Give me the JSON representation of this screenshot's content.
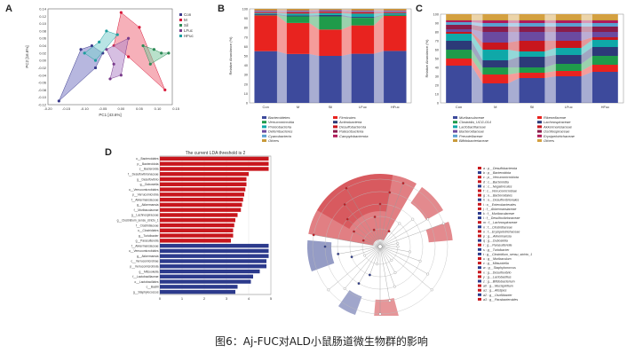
{
  "figure": {
    "caption": "图6：Aj-FUC对ALD小鼠肠道微生物群的影响",
    "panel_letters": [
      "A",
      "B",
      "C",
      "D"
    ]
  },
  "chart_data": [
    {
      "id": "A",
      "type": "scatter",
      "xlabel": "PC1 [43.6%]",
      "ylabel": "PC2 [16.6%]",
      "xlim": [
        -0.2,
        0.14
      ],
      "ylim": [
        -0.12,
        0.14
      ],
      "xticks": [
        "-0.20",
        "-0.15",
        "-0.10",
        "-0.05",
        "0.00",
        "0.05",
        "0.10",
        "0.15"
      ],
      "yticks": [
        "0.14",
        "0.12",
        "0.10",
        "0.08",
        "0.06",
        "0.04",
        "0.02",
        "0.00",
        "-0.02",
        "-0.04",
        "-0.06",
        "-0.08",
        "-0.10",
        "-0.12"
      ],
      "series": [
        {
          "name": "Con",
          "color": "#3a3a8c",
          "fill": "#7b7bc4",
          "points": [
            [
              -0.17,
              -0.11
            ],
            [
              -0.11,
              0.03
            ],
            [
              -0.08,
              0.04
            ],
            [
              -0.05,
              0.02
            ],
            [
              -0.07,
              -0.02
            ]
          ]
        },
        {
          "name": "M",
          "color": "#d81b3c",
          "fill": "#ef6f7f",
          "points": [
            [
              0.0,
              0.13
            ],
            [
              0.05,
              0.09
            ],
            [
              0.12,
              -0.08
            ],
            [
              0.02,
              0.01
            ],
            [
              -0.02,
              0.04
            ]
          ]
        },
        {
          "name": "Sil",
          "color": "#2e8b57",
          "fill": "#7fc9a0",
          "points": [
            [
              0.06,
              0.04
            ],
            [
              0.09,
              0.03
            ],
            [
              0.11,
              0.02
            ],
            [
              0.13,
              0.02
            ],
            [
              0.08,
              -0.01
            ]
          ]
        },
        {
          "name": "LFuc",
          "color": "#7a3d8c",
          "fill": "#b48acb",
          "points": [
            [
              -0.04,
              0.03
            ],
            [
              -0.02,
              -0.01
            ],
            [
              -0.03,
              -0.05
            ],
            [
              0.0,
              -0.04
            ],
            [
              0.02,
              0.06
            ]
          ]
        },
        {
          "name": "HFuc",
          "color": "#1e9e9e",
          "fill": "#7fd0d0",
          "points": [
            [
              -0.1,
              0.02
            ],
            [
              -0.06,
              0.05
            ],
            [
              -0.04,
              0.08
            ],
            [
              -0.01,
              0.07
            ],
            [
              -0.07,
              0.0
            ]
          ]
        }
      ]
    },
    {
      "id": "B",
      "type": "bar",
      "stacked": true,
      "ylabel": "Relative Abundance (%)",
      "yticks": [
        "100",
        "90",
        "80",
        "70",
        "60",
        "50",
        "40",
        "30",
        "20",
        "10",
        "0"
      ],
      "categories": [
        "Con",
        "M",
        "Sil",
        "LFuc",
        "HFuc"
      ],
      "series": [
        {
          "name": "Bacteroidetes",
          "color": "#3d4a9c",
          "values": [
            55,
            52,
            50,
            52,
            55
          ]
        },
        {
          "name": "Firmicutes",
          "color": "#e8231f",
          "values": [
            38,
            33,
            28,
            30,
            37
          ]
        },
        {
          "name": "Verrucomicrobia",
          "color": "#1f9b4a",
          "values": [
            0.5,
            7,
            14,
            8,
            1
          ]
        },
        {
          "name": "Actinobacteria",
          "color": "#2c3a78",
          "values": [
            1,
            1,
            1.5,
            1,
            0.5
          ]
        },
        {
          "name": "Proteobacteria",
          "color": "#0fa8a8",
          "values": [
            1,
            2,
            2,
            3.5,
            1.5
          ]
        },
        {
          "name": "Desulfobacterota",
          "color": "#c8161d",
          "values": [
            1,
            1.5,
            1.5,
            1.5,
            1
          ]
        },
        {
          "name": "Deferribacteres",
          "color": "#6b4aa0",
          "values": [
            0.5,
            0.5,
            0.5,
            0.5,
            0.5
          ]
        },
        {
          "name": "Patescibacteria",
          "color": "#8a1c4a",
          "values": [
            0.5,
            0.5,
            0.5,
            0.5,
            0.5
          ]
        },
        {
          "name": "Cyanobacteria",
          "color": "#5aa0d0",
          "values": [
            0.5,
            0.5,
            0.5,
            0.5,
            0.5
          ]
        },
        {
          "name": "Campylobacterota",
          "color": "#b01a5a",
          "values": [
            0.5,
            0.5,
            0.5,
            0.5,
            0.5
          ]
        },
        {
          "name": "Others",
          "color": "#c89a3a",
          "values": [
            1.5,
            1.5,
            1,
            1.5,
            1.5
          ]
        }
      ]
    },
    {
      "id": "C",
      "type": "bar",
      "stacked": true,
      "ylabel": "Relative Abundance (%)",
      "yticks": [
        "100",
        "90",
        "80",
        "70",
        "60",
        "50",
        "40",
        "30",
        "20",
        "10",
        "0"
      ],
      "categories": [
        "Con",
        "M",
        "Sil",
        "LFuc",
        "HFuc"
      ],
      "series": [
        {
          "name": "Muribaculaceae",
          "color": "#3d4a9c",
          "values": [
            42,
            22,
            28,
            30,
            35
          ]
        },
        {
          "name": "Rikenellaceae",
          "color": "#e8231f",
          "values": [
            8,
            10,
            6,
            6,
            8
          ]
        },
        {
          "name": "Clostridia_UCG-014",
          "color": "#1f9b4a",
          "values": [
            10,
            8,
            6,
            8,
            10
          ]
        },
        {
          "name": "Lachnospiraceae",
          "color": "#2c3a78",
          "values": [
            10,
            8,
            12,
            10,
            10
          ]
        },
        {
          "name": "Lactobacillaceae",
          "color": "#0fa8a8",
          "values": [
            8,
            12,
            6,
            8,
            8
          ]
        },
        {
          "name": "Akkermansiaceae",
          "color": "#c8161d",
          "values": [
            2,
            8,
            12,
            8,
            3
          ]
        },
        {
          "name": "Bacteroidaceae",
          "color": "#6b4aa0",
          "values": [
            3,
            12,
            10,
            10,
            6
          ]
        },
        {
          "name": "Oscillospiraceae",
          "color": "#8a1c4a",
          "values": [
            5,
            6,
            6,
            6,
            6
          ]
        },
        {
          "name": "Prevotellaceae",
          "color": "#5aa0d0",
          "values": [
            3,
            4,
            4,
            4,
            4
          ]
        },
        {
          "name": "Erysipelotrichaceae",
          "color": "#b01a5a",
          "values": [
            2,
            3,
            3,
            3,
            3
          ]
        },
        {
          "name": "Bifidobacteriaceae",
          "color": "#c89a3a",
          "values": [
            1,
            1,
            1,
            1,
            1
          ]
        },
        {
          "name": "Others",
          "color": "#d4a040",
          "values": [
            6,
            6,
            6,
            6,
            6
          ]
        }
      ]
    },
    {
      "id": "D",
      "type": "bar",
      "orientation": "horizontal",
      "title": "The current LDA threshold is 2",
      "xticks": [
        "0",
        "1",
        "2",
        "3",
        "4",
        "5"
      ],
      "xlim": [
        0,
        5
      ],
      "legend": [
        {
          "name": "M",
          "color": "#2c3a8c"
        },
        {
          "name": "HFuc",
          "color": "#c8161d"
        }
      ],
      "categories": [
        "o__Bacteroidales",
        "p__Bacteroidota",
        "c__Bacteroidia",
        "f__Desulfovibrionaceae",
        "g__Desulfovibrio",
        "g__Dubosiella",
        "o__Verrucomicrobiales",
        "p__Verrucomicrobia",
        "f__Akkermansiaceae",
        "g__Akkermansia",
        "f__Muribaculaceae",
        "g__Lachnospiraceae",
        "g__Clostridium_sensu_stricto_1",
        "f__Clostridiaceae",
        "o__Clostridiales",
        "g__Turicibacter",
        "g__Parasutterella",
        "f__Akkermansiaceae",
        "o__Verrucomicrobiales",
        "g__Akkermansia",
        "c__Verrucomicrobiae",
        "p__Verrucomicrobiota",
        "g__Mitsuokella",
        "f__Lactobacillaceae",
        "o__Lactobacillales",
        "c__Bacilli",
        "g__Staphylococcus"
      ],
      "values": [
        4.9,
        4.9,
        4.9,
        4.0,
        3.9,
        3.9,
        3.85,
        3.8,
        3.75,
        3.7,
        3.65,
        3.5,
        3.4,
        3.35,
        3.3,
        3.3,
        3.2,
        4.9,
        4.9,
        4.9,
        4.8,
        4.8,
        4.5,
        4.2,
        4.1,
        3.5,
        3.4
      ],
      "groups": [
        "HFuc",
        "HFuc",
        "HFuc",
        "HFuc",
        "HFuc",
        "HFuc",
        "HFuc",
        "HFuc",
        "HFuc",
        "HFuc",
        "HFuc",
        "HFuc",
        "HFuc",
        "HFuc",
        "HFuc",
        "HFuc",
        "HFuc",
        "M",
        "M",
        "M",
        "M",
        "M",
        "M",
        "M",
        "M",
        "M",
        "M"
      ]
    },
    {
      "id": "cladogram",
      "type": "other",
      "legend": [
        {
          "name": "M",
          "color": "#2c3a8c"
        },
        {
          "name": "HFuc",
          "color": "#c8161d"
        }
      ],
      "taxa": [
        "a : p__Desulfobacterota",
        "b : p__Bacteroidota",
        "c : p__Verrucomicrobiota",
        "d : c__Bacteroidia",
        "e : c__Negativicutes",
        "f : c__Verrucomicrobiae",
        "g : o__Bacteroidales",
        "h : o__Desulfovibrionales",
        "i : o__Enterobacterales",
        "j : f__Akkermansiaceae",
        "k : f__Muribaculaceae",
        "l : f__Desulfovibrionaceae",
        "m : f__Lachnospiraceae",
        "n : f__Clostridiaceae",
        "o : f__Erysipelotrichaceae",
        "p : g__Akkermansia",
        "q : g__Dubosiella",
        "r : g__Parasutterella",
        "s : g__Turicibacter",
        "t : g__Clostridium_sensu_stricto_1",
        "u : g__Muribaculum",
        "v : g__Mitsuokella",
        "w : g__Staphylococcus",
        "x : g__Desulfovibrio",
        "y : g__Lactobacillus",
        "z : g__Bifidobacterium",
        "a0 : g__Mucispirillum",
        "a1 : g__Alistipes",
        "a2 : g__Oscillibacter",
        "a3 : g__Parabacteroides"
      ]
    }
  ]
}
